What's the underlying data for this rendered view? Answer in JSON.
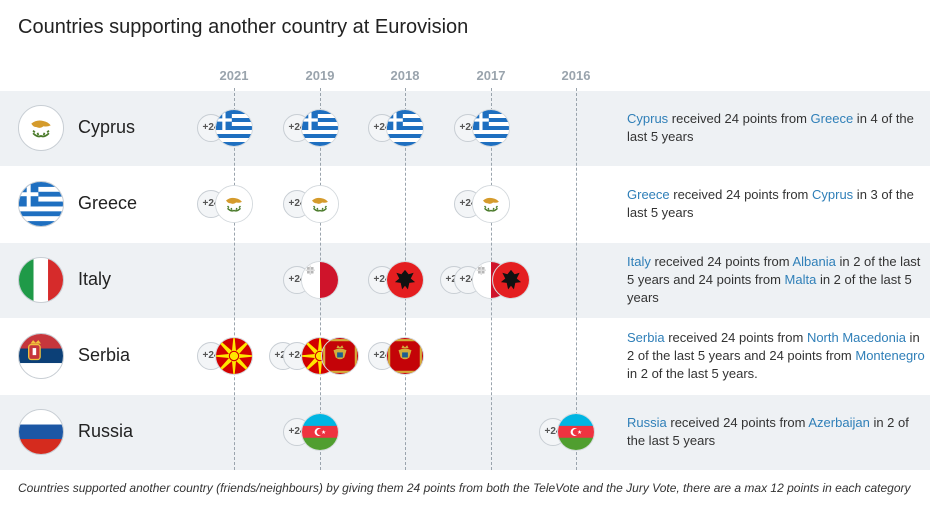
{
  "chart_data": {
    "type": "table",
    "title": "Countries supporting another country at Eurovision",
    "years": [
      "2021",
      "2019",
      "2018",
      "2017",
      "2016"
    ],
    "points_label": "+24",
    "rows": [
      {
        "country": "Cyprus",
        "flag": "cyprus",
        "received": [
          {
            "year": "2021",
            "from": [
              "Greece"
            ]
          },
          {
            "year": "2019",
            "from": [
              "Greece"
            ]
          },
          {
            "year": "2018",
            "from": [
              "Greece"
            ]
          },
          {
            "year": "2017",
            "from": [
              "Greece"
            ]
          }
        ],
        "description": [
          {
            "t": "Cyprus",
            "hl": true
          },
          {
            "t": " received 24 points from ",
            "hl": false
          },
          {
            "t": "Greece",
            "hl": true
          },
          {
            "t": " in 4 of the last 5 years",
            "hl": false
          }
        ]
      },
      {
        "country": "Greece",
        "flag": "greece",
        "received": [
          {
            "year": "2021",
            "from": [
              "Cyprus"
            ]
          },
          {
            "year": "2019",
            "from": [
              "Cyprus"
            ]
          },
          {
            "year": "2017",
            "from": [
              "Cyprus"
            ]
          }
        ],
        "description": [
          {
            "t": "Greece",
            "hl": true
          },
          {
            "t": " received 24 points from ",
            "hl": false
          },
          {
            "t": "Cyprus",
            "hl": true
          },
          {
            "t": " in 3 of the last 5 years",
            "hl": false
          }
        ]
      },
      {
        "country": "Italy",
        "flag": "italy",
        "received": [
          {
            "year": "2019",
            "from": [
              "Malta"
            ]
          },
          {
            "year": "2018",
            "from": [
              "Albania"
            ]
          },
          {
            "year": "2017",
            "from": [
              "Malta",
              "Albania"
            ]
          }
        ],
        "description": [
          {
            "t": "Italy",
            "hl": true
          },
          {
            "t": " received 24 points from ",
            "hl": false
          },
          {
            "t": "Albania",
            "hl": true
          },
          {
            "t": " in 2 of the last 5 years and 24 points from ",
            "hl": false
          },
          {
            "t": "Malta",
            "hl": true
          },
          {
            "t": " in 2 of the last 5 years",
            "hl": false
          }
        ]
      },
      {
        "country": "Serbia",
        "flag": "serbia",
        "received": [
          {
            "year": "2021",
            "from": [
              "North Macedonia"
            ]
          },
          {
            "year": "2019",
            "from": [
              "North Macedonia",
              "Montenegro"
            ]
          },
          {
            "year": "2018",
            "from": [
              "Montenegro"
            ]
          }
        ],
        "description": [
          {
            "t": "Serbia",
            "hl": true
          },
          {
            "t": " received 24 points from ",
            "hl": false
          },
          {
            "t": "North Macedonia",
            "hl": true
          },
          {
            "t": " in 2 of the last 5 years and 24 points from ",
            "hl": false
          },
          {
            "t": "Montenegro",
            "hl": true
          },
          {
            "t": " in 2 of the last 5 years.",
            "hl": false
          }
        ]
      },
      {
        "country": "Russia",
        "flag": "russia",
        "received": [
          {
            "year": "2019",
            "from": [
              "Azerbaijan"
            ]
          },
          {
            "year": "2016",
            "from": [
              "Azerbaijan"
            ]
          }
        ],
        "description": [
          {
            "t": "Russia",
            "hl": true
          },
          {
            "t": " received 24 points from ",
            "hl": false
          },
          {
            "t": "Azerbaijan",
            "hl": true
          },
          {
            "t": " in 2 of the last 5 years",
            "hl": false
          }
        ]
      }
    ],
    "caption": "Countries supported another country (friends/neighbours) by giving them 24 points from both the TeleVote and the Jury Vote, there are a max 12 points in each category"
  }
}
